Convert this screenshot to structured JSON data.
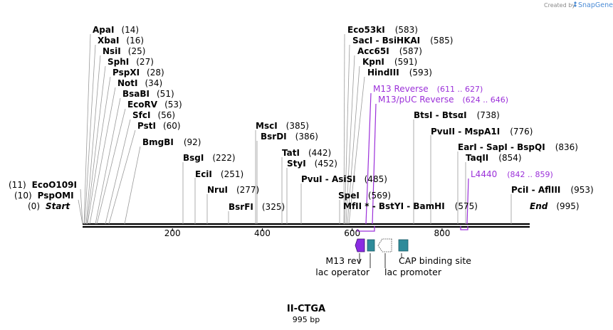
{
  "watermark": {
    "prefix": "Created by",
    "brand": "SnapGene"
  },
  "map": {
    "title": "II-CTGA",
    "length": "995 bp",
    "length_bp": 995
  },
  "axis": {
    "ticks": [
      200,
      400,
      600,
      800
    ]
  },
  "sites": [
    {
      "name": "ApaI",
      "pos": "(14)",
      "bp": 14
    },
    {
      "name": "XbaI",
      "pos": "(16)",
      "bp": 16
    },
    {
      "name": "NsiI",
      "pos": "(25)",
      "bp": 25
    },
    {
      "name": "SphI",
      "pos": "(27)",
      "bp": 27
    },
    {
      "name": "PspXI",
      "pos": "(28)",
      "bp": 28
    },
    {
      "name": "NotI",
      "pos": "(34)",
      "bp": 34
    },
    {
      "name": "BsaBI",
      "pos": "(51)",
      "bp": 51
    },
    {
      "name": "EcoRV",
      "pos": "(53)",
      "bp": 53
    },
    {
      "name": "SfcI",
      "pos": "(56)",
      "bp": 56
    },
    {
      "name": "PstI",
      "pos": "(60)",
      "bp": 60
    },
    {
      "name": "BmgBI",
      "pos": "(92)",
      "bp": 92
    },
    {
      "name": "BsgI",
      "pos": "(222)",
      "bp": 222
    },
    {
      "name": "EciI",
      "pos": "(251)",
      "bp": 251
    },
    {
      "name": "NruI",
      "pos": "(277)",
      "bp": 277
    },
    {
      "name": "BsrFI",
      "pos": "(325)",
      "bp": 325
    },
    {
      "name": "MscI",
      "pos": "(385)",
      "bp": 385
    },
    {
      "name": "BsrDI",
      "pos": "(386)",
      "bp": 386
    },
    {
      "name": "TatI",
      "pos": "(442)",
      "bp": 442
    },
    {
      "name": "StyI",
      "pos": "(452)",
      "bp": 452
    },
    {
      "name": "PvuI - AsiSI",
      "pos": "(485)",
      "bp": 485
    },
    {
      "name": "SpeI",
      "pos": "(569)",
      "bp": 569
    },
    {
      "name": "MfII * - BstYI - BamHI",
      "pos": "(575)",
      "bp": 575
    },
    {
      "name": "Eco53kI",
      "pos": "(583)",
      "bp": 583
    },
    {
      "name": "SacI - BsiHKAI",
      "pos": "(585)",
      "bp": 585
    },
    {
      "name": "Acc65I",
      "pos": "(587)",
      "bp": 587
    },
    {
      "name": "KpnI",
      "pos": "(591)",
      "bp": 591
    },
    {
      "name": "HindIII",
      "pos": "(593)",
      "bp": 593
    },
    {
      "name": "BtsI - BtsαI",
      "pos": "(738)",
      "bp": 738
    },
    {
      "name": "PvuII - MspA1I",
      "pos": "(776)",
      "bp": 776
    },
    {
      "name": "EarI - SapI - BspQI",
      "pos": "(836)",
      "bp": 836
    },
    {
      "name": "TaqII",
      "pos": "(854)",
      "bp": 854
    },
    {
      "name": "PciI - AflIII",
      "pos": "(953)",
      "bp": 953
    }
  ],
  "left_sites": [
    {
      "name": "EcoO109I",
      "pos": "(11)",
      "bp": 11
    },
    {
      "name": "PspOMI",
      "pos": "(10)",
      "bp": 10
    },
    {
      "name": "Start",
      "pos": "(0)",
      "bp": 0
    }
  ],
  "end_site": {
    "name": "End",
    "pos": "(995)",
    "bp": 995
  },
  "primers": [
    {
      "name": "M13 Reverse",
      "range": "(611 .. 627)",
      "start": 611,
      "end": 627
    },
    {
      "name": "M13/pUC Reverse",
      "range": "(624 .. 646)",
      "start": 624,
      "end": 646
    },
    {
      "name": "L4440",
      "range": "(842 .. 859)",
      "start": 842,
      "end": 859
    }
  ],
  "features": [
    {
      "name": "M13 rev",
      "type": "arrow-left",
      "color": "#8a2be2"
    },
    {
      "name": "lac operator",
      "type": "box",
      "color": "#2e8b9a"
    },
    {
      "name": "lac promoter",
      "type": "arrow-left-outline",
      "color": "#ffffff"
    },
    {
      "name": "CAP binding site",
      "type": "box",
      "color": "#2e8b9a"
    }
  ],
  "colors": {
    "primer": "#9b30d9",
    "feature_box": "#2e8b9a",
    "lac_arrow": "#8a2be2"
  }
}
